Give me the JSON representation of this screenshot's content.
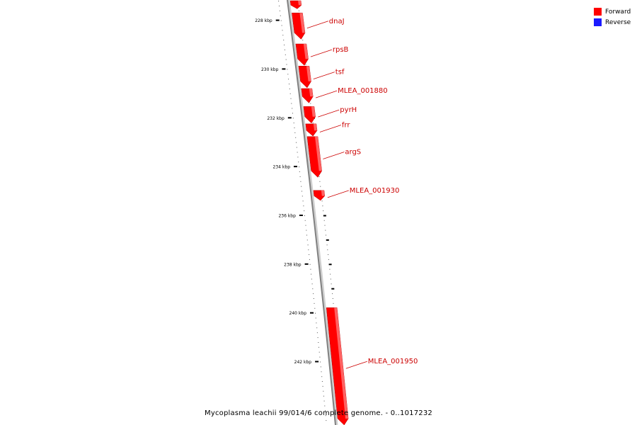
{
  "genome_title": "Mycoplasma leachii 99/014/6 complete genome. - 0..1017232",
  "legend": [
    {
      "label": "Forward",
      "color": "#ff0000"
    },
    {
      "label": "Reverse",
      "color": "#1a1aff"
    }
  ],
  "colors": {
    "backbone": "#808080",
    "gene": "#ff0000",
    "label": "#cc0000",
    "tick": "#000000"
  },
  "scale_marks": [
    {
      "kbp": 228,
      "label": "228 kbp"
    },
    {
      "kbp": 230,
      "label": "230 kbp"
    },
    {
      "kbp": 232,
      "label": "232 kbp"
    },
    {
      "kbp": 234,
      "label": "234 kbp"
    },
    {
      "kbp": 236,
      "label": "236 kbp"
    },
    {
      "kbp": 238,
      "label": "238 kbp"
    },
    {
      "kbp": 240,
      "label": "240 kbp"
    },
    {
      "kbp": 242,
      "label": "242 kbp"
    }
  ],
  "genes": [
    {
      "name": "",
      "start_kbp": 227.2,
      "end_kbp": 227.53,
      "strand": "forward"
    },
    {
      "name": "dnaJ",
      "start_kbp": 227.7,
      "end_kbp": 228.78,
      "strand": "forward"
    },
    {
      "name": "rpsB",
      "start_kbp": 228.97,
      "end_kbp": 229.85,
      "strand": "forward"
    },
    {
      "name": "tsf",
      "start_kbp": 229.88,
      "end_kbp": 230.77,
      "strand": "forward"
    },
    {
      "name": "MLEA_001880",
      "start_kbp": 230.8,
      "end_kbp": 231.39,
      "strand": "forward"
    },
    {
      "name": "pyrH",
      "start_kbp": 231.54,
      "end_kbp": 232.22,
      "strand": "forward"
    },
    {
      "name": "frr",
      "start_kbp": 232.25,
      "end_kbp": 232.75,
      "strand": "forward"
    },
    {
      "name": "argS",
      "start_kbp": 232.77,
      "end_kbp": 234.44,
      "strand": "forward"
    },
    {
      "name": "MLEA_001930",
      "start_kbp": 234.98,
      "end_kbp": 235.39,
      "strand": "forward"
    },
    {
      "name": "MLEA_001950",
      "start_kbp": 239.79,
      "end_kbp": 244.6,
      "strand": "forward"
    }
  ]
}
